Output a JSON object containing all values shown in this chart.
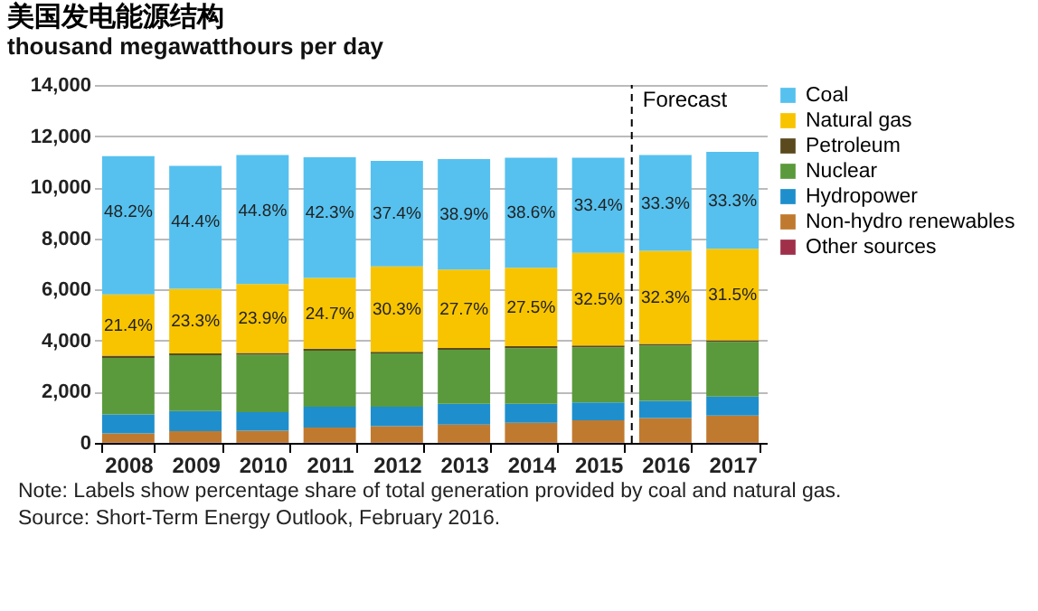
{
  "chart_data": {
    "type": "bar",
    "title": "美国发电能源结构",
    "subtitle": "thousand megawatthours per day",
    "stacked": true,
    "categories": [
      "2008",
      "2009",
      "2010",
      "2011",
      "2012",
      "2013",
      "2014",
      "2015",
      "2016",
      "2017"
    ],
    "series": [
      {
        "name": "Other sources",
        "color": "#a0304a",
        "values": [
          20,
          20,
          20,
          20,
          20,
          20,
          20,
          20,
          20,
          20
        ]
      },
      {
        "name": "Non-hydro renewables",
        "color": "#c07a30",
        "values": [
          350,
          440,
          460,
          580,
          630,
          700,
          770,
          860,
          950,
          1050
        ]
      },
      {
        "name": "Hydropower",
        "color": "#1e8fcc",
        "values": [
          740,
          790,
          720,
          810,
          760,
          810,
          740,
          700,
          670,
          740
        ]
      },
      {
        "name": "Nuclear",
        "color": "#5a9a3c",
        "values": [
          2210,
          2180,
          2250,
          2200,
          2090,
          2110,
          2170,
          2160,
          2170,
          2140
        ]
      },
      {
        "name": "Petroleum",
        "color": "#5a4a1e",
        "values": [
          90,
          70,
          70,
          80,
          60,
          70,
          80,
          70,
          60,
          60
        ]
      },
      {
        "name": "Natural gas",
        "color": "#f8c400",
        "values": [
          2400,
          2530,
          2690,
          2760,
          3340,
          3070,
          3070,
          3620,
          3640,
          3580
        ]
      },
      {
        "name": "Coal",
        "color": "#56c1ef",
        "values": [
          5410,
          4810,
          5050,
          4720,
          4130,
          4320,
          4300,
          3720,
          3750,
          3790
        ]
      }
    ],
    "ylim": [
      0,
      14000
    ],
    "yticks": [
      {
        "value": 0,
        "label": "0"
      },
      {
        "value": 2000,
        "label": "2,000"
      },
      {
        "value": 4000,
        "label": "4,000"
      },
      {
        "value": 6000,
        "label": "6,000"
      },
      {
        "value": 8000,
        "label": "8,000"
      },
      {
        "value": 10000,
        "label": "10,000"
      },
      {
        "value": 12000,
        "label": "12,000"
      },
      {
        "value": 14000,
        "label": "14,000"
      }
    ],
    "grid": "y",
    "legend": "right",
    "ref_lines": [
      {
        "axis": "x",
        "value": "2016",
        "label": "Forecast",
        "line_style": "dashed",
        "color": "#000000"
      }
    ],
    "annotations": [
      "Note: Labels show percentage  share of total generation  provided  by coal and natural gas.",
      "Source: Short-Term Energy Outlook, February 2016.",
      {
        "text": "48.2%",
        "x": "2008",
        "y": 11220
      },
      {
        "text": "44.4%",
        "x": "2009",
        "y": 10840
      },
      {
        "text": "44.8%",
        "x": "2010",
        "y": 11260
      },
      {
        "text": "42.3%",
        "x": "2011",
        "y": 11170
      },
      {
        "text": "37.4%",
        "x": "2012",
        "y": 11030
      },
      {
        "text": "38.9%",
        "x": "2013",
        "y": 11100
      },
      {
        "text": "38.6%",
        "x": "2014",
        "y": 11150
      },
      {
        "text": "33.4%",
        "x": "2015",
        "y": 11150
      },
      {
        "text": "33.3%",
        "x": "2016",
        "y": 11260
      },
      {
        "text": "33.3%",
        "x": "2017",
        "y": 11380
      },
      {
        "text": "21.4%",
        "x": "2008",
        "y": 5810
      },
      {
        "text": "23.3%",
        "x": "2009",
        "y": 6030
      },
      {
        "text": "23.9%",
        "x": "2010",
        "y": 6210
      },
      {
        "text": "24.7%",
        "x": "2011",
        "y": 6450
      },
      {
        "text": "30.3%",
        "x": "2012",
        "y": 6900
      },
      {
        "text": "27.7%",
        "x": "2013",
        "y": 6780
      },
      {
        "text": "27.5%",
        "x": "2014",
        "y": 6850
      },
      {
        "text": "32.5%",
        "x": "2015",
        "y": 7430
      },
      {
        "text": "32.3%",
        "x": "2016",
        "y": 7510
      },
      {
        "text": "31.5%",
        "x": "2017",
        "y": 7590
      }
    ]
  }
}
